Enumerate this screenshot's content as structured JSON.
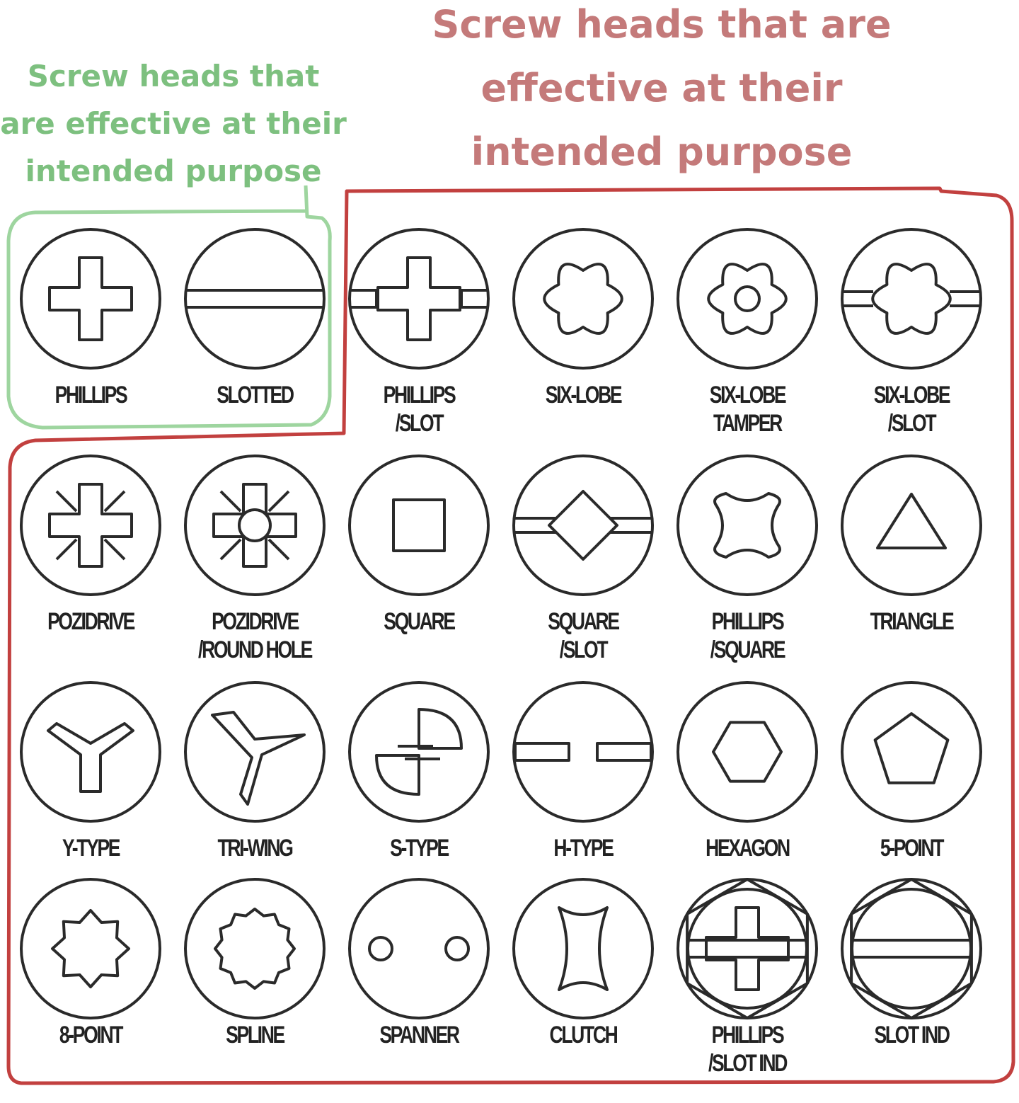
{
  "headings": {
    "effective": "Screw heads that are effective at their intended purpose",
    "ineffective": "Screw heads that are effective at their intended purpose"
  },
  "colors": {
    "green": "#7dc07f",
    "red": "#c47a7a"
  },
  "screw_heads": [
    {
      "label": "PHILLIPS",
      "icon": "phillips",
      "group": "green"
    },
    {
      "label": "SLOTTED",
      "icon": "slotted",
      "group": "green"
    },
    {
      "label": "PHILLIPS\n/SLOT",
      "icon": "phillips-slot",
      "group": "red"
    },
    {
      "label": "SIX-LOBE",
      "icon": "six-lobe",
      "group": "red"
    },
    {
      "label": "SIX-LOBE\nTAMPER",
      "icon": "six-lobe-tamper",
      "group": "red"
    },
    {
      "label": "SIX-LOBE\n/SLOT",
      "icon": "six-lobe-slot",
      "group": "red"
    },
    {
      "label": "POZIDRIVE",
      "icon": "pozidrive",
      "group": "red"
    },
    {
      "label": "POZIDRIVE\n/ROUND HOLE",
      "icon": "pozidrive-round-hole",
      "group": "red"
    },
    {
      "label": "SQUARE",
      "icon": "square",
      "group": "red"
    },
    {
      "label": "SQUARE\n/SLOT",
      "icon": "square-slot",
      "group": "red"
    },
    {
      "label": "PHILLIPS\n/SQUARE",
      "icon": "phillips-square",
      "group": "red"
    },
    {
      "label": "TRIANGLE",
      "icon": "triangle",
      "group": "red"
    },
    {
      "label": "Y-TYPE",
      "icon": "y-type",
      "group": "red"
    },
    {
      "label": "TRI-WING",
      "icon": "tri-wing",
      "group": "red"
    },
    {
      "label": "S-TYPE",
      "icon": "s-type",
      "group": "red"
    },
    {
      "label": "H-TYPE",
      "icon": "h-type",
      "group": "red"
    },
    {
      "label": "HEXAGON",
      "icon": "hexagon",
      "group": "red"
    },
    {
      "label": "5-POINT",
      "icon": "five-point",
      "group": "red"
    },
    {
      "label": "8-POINT",
      "icon": "eight-point",
      "group": "red"
    },
    {
      "label": "SPLINE",
      "icon": "spline",
      "group": "red"
    },
    {
      "label": "SPANNER",
      "icon": "spanner",
      "group": "red"
    },
    {
      "label": "CLUTCH",
      "icon": "clutch",
      "group": "red"
    },
    {
      "label": "PHILLIPS\n/SLOT IND",
      "icon": "phillips-slot-ind",
      "group": "red"
    },
    {
      "label": "SLOT IND",
      "icon": "slot-ind",
      "group": "red"
    }
  ]
}
